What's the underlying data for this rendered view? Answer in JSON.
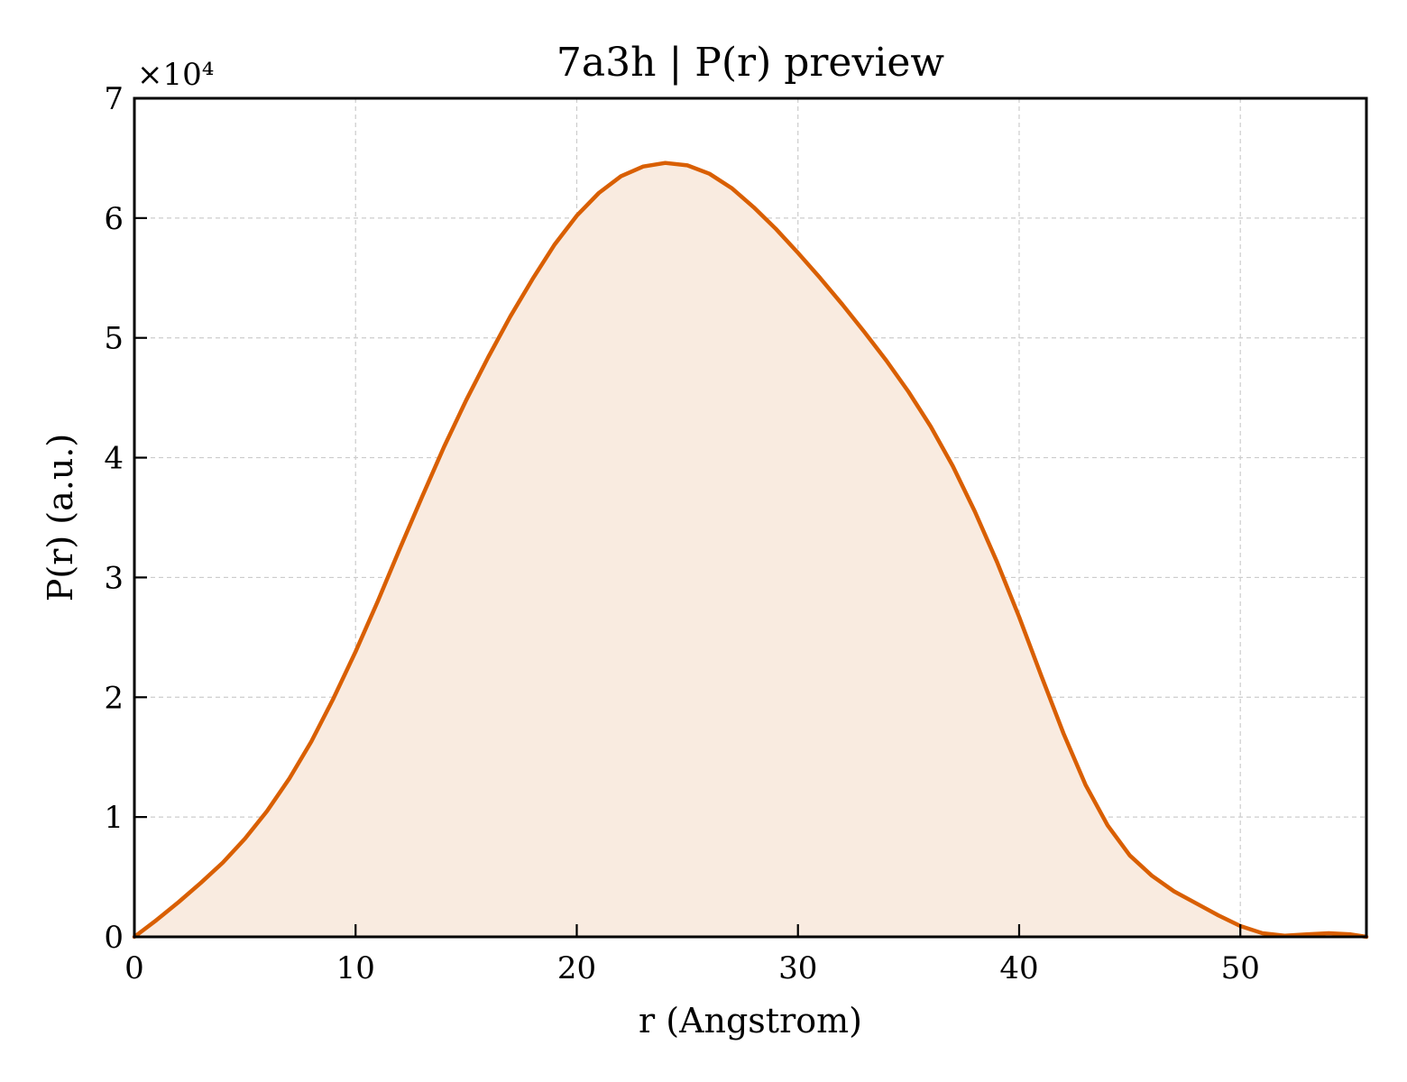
{
  "chart_data": {
    "type": "area",
    "title": "7a3h | P(r) preview",
    "xlabel": "r (Angstrom)",
    "ylabel": "P(r) (a.u.)",
    "y_offset_label": "×10⁴",
    "y_scale_multiplier": 10000,
    "xlim": [
      0,
      55.7
    ],
    "ylim": [
      0,
      70000
    ],
    "x_ticks": [
      0,
      10,
      20,
      30,
      40,
      50
    ],
    "x_tick_labels": [
      "0",
      "10",
      "20",
      "30",
      "40",
      "50"
    ],
    "y_ticks": [
      0,
      10000,
      20000,
      30000,
      40000,
      50000,
      60000,
      70000
    ],
    "y_tick_labels": [
      "0",
      "1",
      "2",
      "3",
      "4",
      "5",
      "6",
      "7"
    ],
    "grid": true,
    "line_color": "#d95f02",
    "fill_color": "#f9ebe0",
    "series": [
      {
        "x": [
          0,
          1,
          2,
          3,
          4,
          5,
          6,
          7,
          8,
          9,
          10,
          11,
          12,
          13,
          14,
          15,
          16,
          17,
          18,
          19,
          20,
          21,
          22,
          23,
          24,
          25,
          26,
          27,
          28,
          29,
          30,
          31,
          32,
          33,
          34,
          35,
          36,
          37,
          38,
          39,
          40,
          41,
          42,
          43,
          44,
          45,
          46,
          47,
          48,
          49,
          50,
          51,
          52,
          53,
          54,
          55,
          55.7
        ],
        "y": [
          0,
          1400,
          2900,
          4500,
          6200,
          8200,
          10500,
          13200,
          16300,
          19900,
          23800,
          28000,
          32400,
          36700,
          40900,
          44800,
          48400,
          51800,
          54900,
          57800,
          60200,
          62100,
          63500,
          64300,
          64600,
          64400,
          63700,
          62500,
          60900,
          59100,
          57100,
          55000,
          52800,
          50500,
          48100,
          45500,
          42600,
          39300,
          35500,
          31300,
          26700,
          21800,
          17000,
          12700,
          9300,
          6800,
          5100,
          3800,
          2800,
          1800,
          900,
          300,
          100,
          200,
          300,
          200,
          0
        ]
      }
    ]
  }
}
